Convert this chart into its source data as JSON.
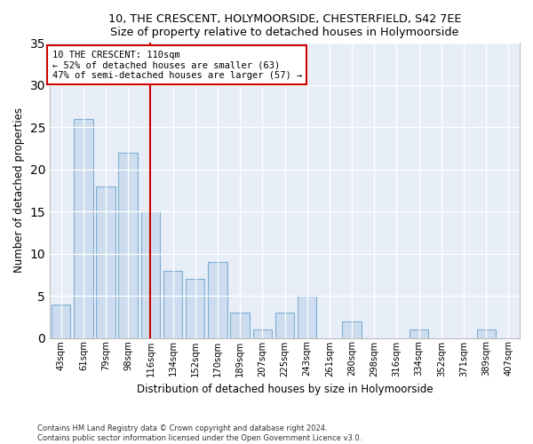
{
  "title1": "10, THE CRESCENT, HOLYMOORSIDE, CHESTERFIELD, S42 7EE",
  "title2": "Size of property relative to detached houses in Holymoorside",
  "xlabel": "Distribution of detached houses by size in Holymoorside",
  "ylabel": "Number of detached properties",
  "footnote1": "Contains HM Land Registry data © Crown copyright and database right 2024.",
  "footnote2": "Contains public sector information licensed under the Open Government Licence v3.0.",
  "annotation_line1": "10 THE CRESCENT: 110sqm",
  "annotation_line2": "← 52% of detached houses are smaller (63)",
  "annotation_line3": "47% of semi-detached houses are larger (57) →",
  "bar_color": "#cddcee",
  "bar_edge_color": "#7bafd4",
  "ref_line_color": "#cc0000",
  "background_color": "#e8eef8",
  "categories": [
    "43sqm",
    "61sqm",
    "79sqm",
    "98sqm",
    "116sqm",
    "134sqm",
    "152sqm",
    "170sqm",
    "189sqm",
    "207sqm",
    "225sqm",
    "243sqm",
    "261sqm",
    "280sqm",
    "298sqm",
    "316sqm",
    "334sqm",
    "352sqm",
    "371sqm",
    "389sqm",
    "407sqm"
  ],
  "values": [
    4,
    26,
    18,
    22,
    15,
    8,
    7,
    9,
    3,
    1,
    3,
    5,
    0,
    2,
    0,
    0,
    1,
    0,
    0,
    1,
    0
  ],
  "ref_bar_index": 4,
  "ylim": [
    0,
    35
  ],
  "yticks": [
    0,
    5,
    10,
    15,
    20,
    25,
    30,
    35
  ]
}
